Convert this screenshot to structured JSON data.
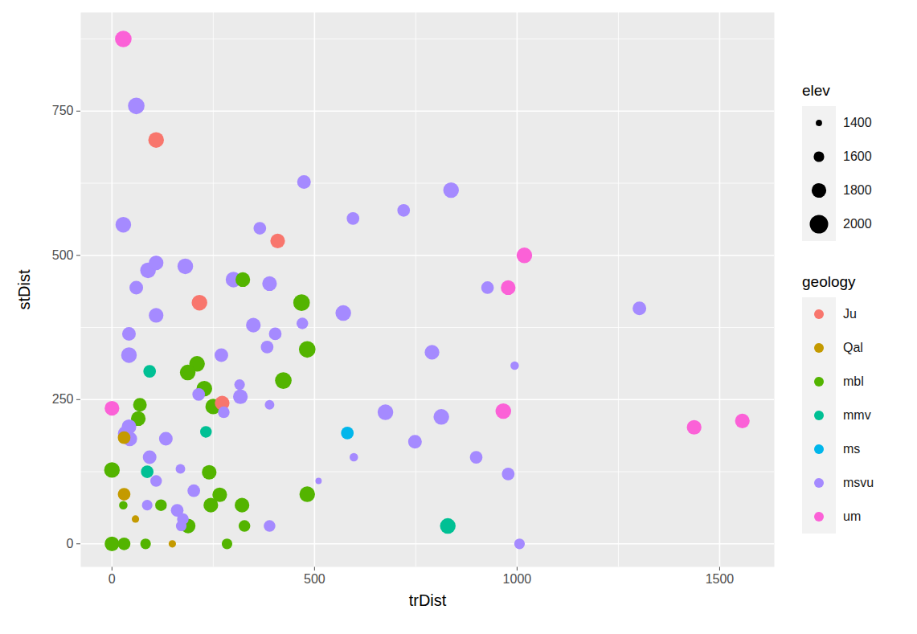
{
  "chart_data": {
    "type": "scatter",
    "x_label": "trDist",
    "y_label": "stDist",
    "xlim": [
      -77,
      1635
    ],
    "ylim": [
      -40,
      921
    ],
    "xticks": [
      0,
      500,
      1000,
      1500
    ],
    "yticks": [
      0,
      250,
      500,
      750
    ],
    "grid": true,
    "legend": "right",
    "size_title": "elev",
    "size_ticks": [
      1400,
      1600,
      1800,
      2000
    ],
    "color_title": "geology",
    "series": [
      {
        "name": "Ju",
        "color": "#F8766D",
        "x": [
          109,
          409,
          216,
          272
        ],
        "y": [
          700,
          525,
          418,
          244
        ],
        "elev": [
          1850,
          1800,
          1850,
          1800
        ]
      },
      {
        "name": "Qal",
        "color": "#C49A00",
        "x": [
          30,
          30,
          58,
          149
        ],
        "y": [
          184,
          86,
          43,
          0
        ],
        "elev": [
          1700,
          1700,
          1450,
          1450
        ]
      },
      {
        "name": "mbl",
        "color": "#53B400",
        "x": [
          323,
          468,
          423,
          482,
          210,
          187,
          228,
          69,
          65,
          250,
          0,
          240,
          266,
          482,
          321,
          244,
          121,
          188,
          327,
          0,
          30,
          83,
          284,
          28
        ],
        "y": [
          458,
          418,
          283,
          337,
          312,
          297,
          269,
          241,
          217,
          238,
          128,
          124,
          85,
          86,
          67,
          67,
          67,
          31,
          31,
          0,
          0,
          0,
          0,
          67
        ],
        "elev": [
          1800,
          1900,
          1900,
          1900,
          1850,
          1850,
          1850,
          1750,
          1800,
          1850,
          1850,
          1800,
          1800,
          1850,
          1800,
          1800,
          1650,
          1800,
          1650,
          1800,
          1700,
          1600,
          1600,
          1500
        ]
      },
      {
        "name": "mmv",
        "color": "#00C094",
        "x": [
          93,
          232,
          87,
          829
        ],
        "y": [
          299,
          194,
          125,
          31
        ],
        "elev": [
          1700,
          1650,
          1700,
          1850
        ]
      },
      {
        "name": "ms",
        "color": "#00B6EB",
        "x": [
          581
        ],
        "y": [
          192
        ],
        "elev": [
          1700
        ]
      },
      {
        "name": "msvu",
        "color": "#A58AFF",
        "x": [
          60,
          28,
          474,
          837,
          720,
          595,
          365,
          89,
          109,
          181,
          300,
          389,
          60,
          927,
          1302,
          571,
          109,
          470,
          42,
          349,
          403,
          383,
          42,
          270,
          790,
          994,
          315,
          317,
          214,
          389,
          276,
          675,
          813,
          42,
          34,
          44,
          133,
          748,
          93,
          597,
          899,
          169,
          978,
          109,
          510,
          202,
          87,
          161,
          175,
          171,
          389,
          1006
        ],
        "y": [
          759,
          553,
          627,
          613,
          578,
          564,
          547,
          474,
          487,
          481,
          458,
          451,
          444,
          444,
          408,
          400,
          396,
          382,
          364,
          379,
          364,
          341,
          327,
          327,
          332,
          309,
          276,
          255,
          259,
          241,
          228,
          228,
          220,
          203,
          191,
          182,
          182,
          177,
          150,
          150,
          150,
          130,
          121,
          109,
          109,
          92,
          67,
          58,
          43,
          31,
          31,
          0
        ],
        "elev": [
          1900,
          1850,
          1750,
          1850,
          1700,
          1700,
          1700,
          1850,
          1800,
          1850,
          1850,
          1800,
          1750,
          1700,
          1750,
          1850,
          1800,
          1650,
          1750,
          1800,
          1700,
          1700,
          1850,
          1750,
          1800,
          1500,
          1600,
          1800,
          1700,
          1550,
          1650,
          1850,
          1850,
          1800,
          1850,
          1800,
          1750,
          1750,
          1750,
          1500,
          1700,
          1550,
          1700,
          1650,
          1400,
          1700,
          1600,
          1700,
          1650,
          1600,
          1650,
          1600
        ]
      },
      {
        "name": "um",
        "color": "#FB61D7",
        "x": [
          28,
          1018,
          978,
          966,
          1437,
          1556,
          0
        ],
        "y": [
          875,
          500,
          444,
          230,
          202,
          213,
          235
        ],
        "elev": [
          1900,
          1850,
          1800,
          1850,
          1800,
          1800,
          1800
        ]
      }
    ]
  }
}
